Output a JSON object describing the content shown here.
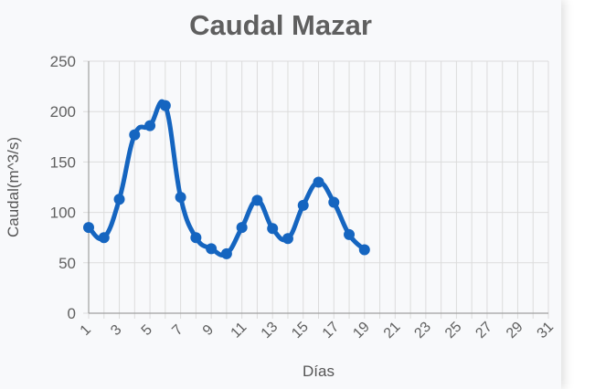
{
  "chart_data": {
    "type": "line",
    "title": "Caudal Mazar",
    "xlabel": "Días",
    "ylabel": "Caudal(m^3/s)",
    "ylim": [
      0,
      250
    ],
    "yticks": [
      0,
      50,
      100,
      150,
      200,
      250
    ],
    "xlim": [
      1,
      31
    ],
    "xticks": [
      1,
      3,
      5,
      7,
      9,
      11,
      13,
      15,
      17,
      19,
      21,
      23,
      25,
      27,
      29,
      31
    ],
    "grid": true,
    "series": [
      {
        "color": "#1565c0",
        "x": [
          1,
          2,
          3,
          4,
          5,
          6,
          7,
          8,
          9,
          10,
          11,
          12,
          13,
          14,
          15,
          16,
          17,
          18,
          19
        ],
        "values": [
          85,
          75,
          113,
          177,
          186,
          206,
          115,
          75,
          64,
          59,
          85,
          112,
          84,
          74,
          107,
          130,
          110,
          78,
          63
        ]
      }
    ]
  }
}
